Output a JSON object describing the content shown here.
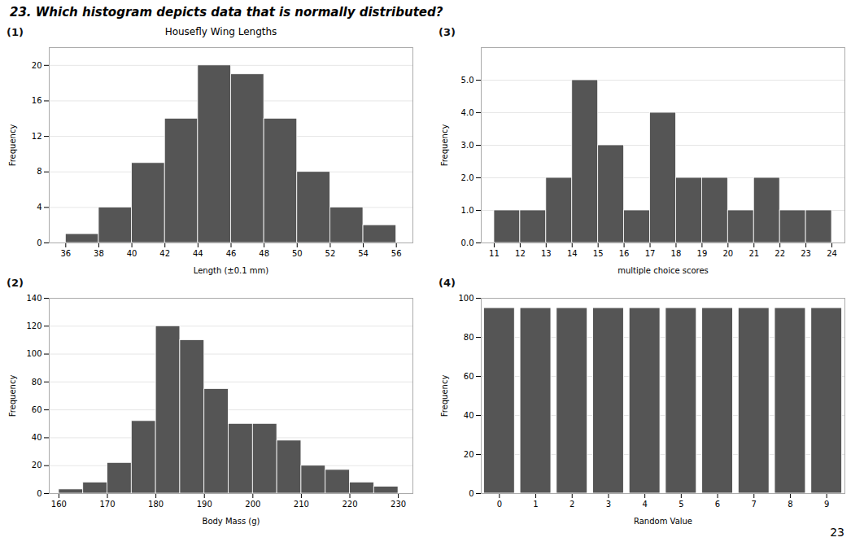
{
  "title": "23.  Which histogram depicts data that is normally distributed?",
  "annotations": [
    "23"
  ],
  "chart_data": [
    {
      "type": "histogram",
      "title": "Housefly Wing Lengths",
      "annotations": [
        "(1)"
      ],
      "xlabel": "Length (±0.1 mm)",
      "ylabel": "Frequency",
      "bins": [
        36,
        38,
        40,
        42,
        44,
        46,
        48,
        50,
        52,
        54,
        56
      ],
      "values": [
        1,
        4,
        9,
        14,
        20,
        19,
        14,
        8,
        4,
        2
      ],
      "color": "#555555",
      "xlim": [
        35,
        57
      ],
      "xticks": [
        36,
        38,
        40,
        42,
        44,
        46,
        48,
        50,
        52,
        54,
        56
      ],
      "ylim": [
        0,
        22
      ],
      "yticks": [
        0,
        4,
        8,
        12,
        16,
        20
      ],
      "grid": true
    },
    {
      "type": "histogram",
      "annotations": [
        "(3)"
      ],
      "xlabel": "multiple choice scores",
      "ylabel": "Frequency",
      "bins": [
        11,
        12,
        13,
        14,
        15,
        16,
        17,
        18,
        19,
        20,
        21,
        22,
        23,
        24
      ],
      "values": [
        1,
        1,
        2,
        5,
        3,
        1,
        4,
        2,
        2,
        1,
        2,
        1,
        1
      ],
      "color": "#555555",
      "xlim": [
        10.5,
        24.5
      ],
      "xticks": [
        11,
        12,
        13,
        14,
        15,
        16,
        17,
        18,
        19,
        20,
        21,
        22,
        23,
        24
      ],
      "ylim": [
        0,
        6
      ],
      "yticks": [
        0,
        1,
        2,
        3,
        4,
        5
      ],
      "grid": true
    },
    {
      "type": "histogram",
      "annotations": [
        "(2)"
      ],
      "xlabel": "Body Mass (g)",
      "ylabel": "Frequency",
      "bins": [
        160,
        165,
        170,
        175,
        180,
        185,
        190,
        195,
        200,
        205,
        210,
        215,
        220,
        225,
        230
      ],
      "values": [
        3,
        8,
        22,
        52,
        120,
        110,
        75,
        50,
        50,
        38,
        20,
        17,
        8,
        5
      ],
      "color": "#555555",
      "xlim": [
        158,
        233
      ],
      "xticks": [
        160,
        170,
        180,
        190,
        200,
        210,
        220,
        230
      ],
      "ylim": [
        0,
        140
      ],
      "yticks": [
        0,
        20,
        40,
        60,
        80,
        100,
        120,
        140
      ],
      "grid": true
    },
    {
      "type": "bar",
      "annotations": [
        "(4)"
      ],
      "xlabel": "Random Value",
      "ylabel": "Frequency",
      "x": [
        0,
        1,
        2,
        3,
        4,
        5,
        6,
        7,
        8,
        9
      ],
      "values": [
        95,
        95,
        95,
        95,
        95,
        95,
        95,
        95,
        95,
        95
      ],
      "color": "#555555",
      "xlim": [
        -0.5,
        9.5
      ],
      "xticks": [
        0,
        1,
        2,
        3,
        4,
        5,
        6,
        7,
        8,
        9
      ],
      "ylim": [
        0,
        100
      ],
      "yticks": [
        0,
        20,
        40,
        60,
        80,
        100
      ],
      "grid": true
    }
  ]
}
